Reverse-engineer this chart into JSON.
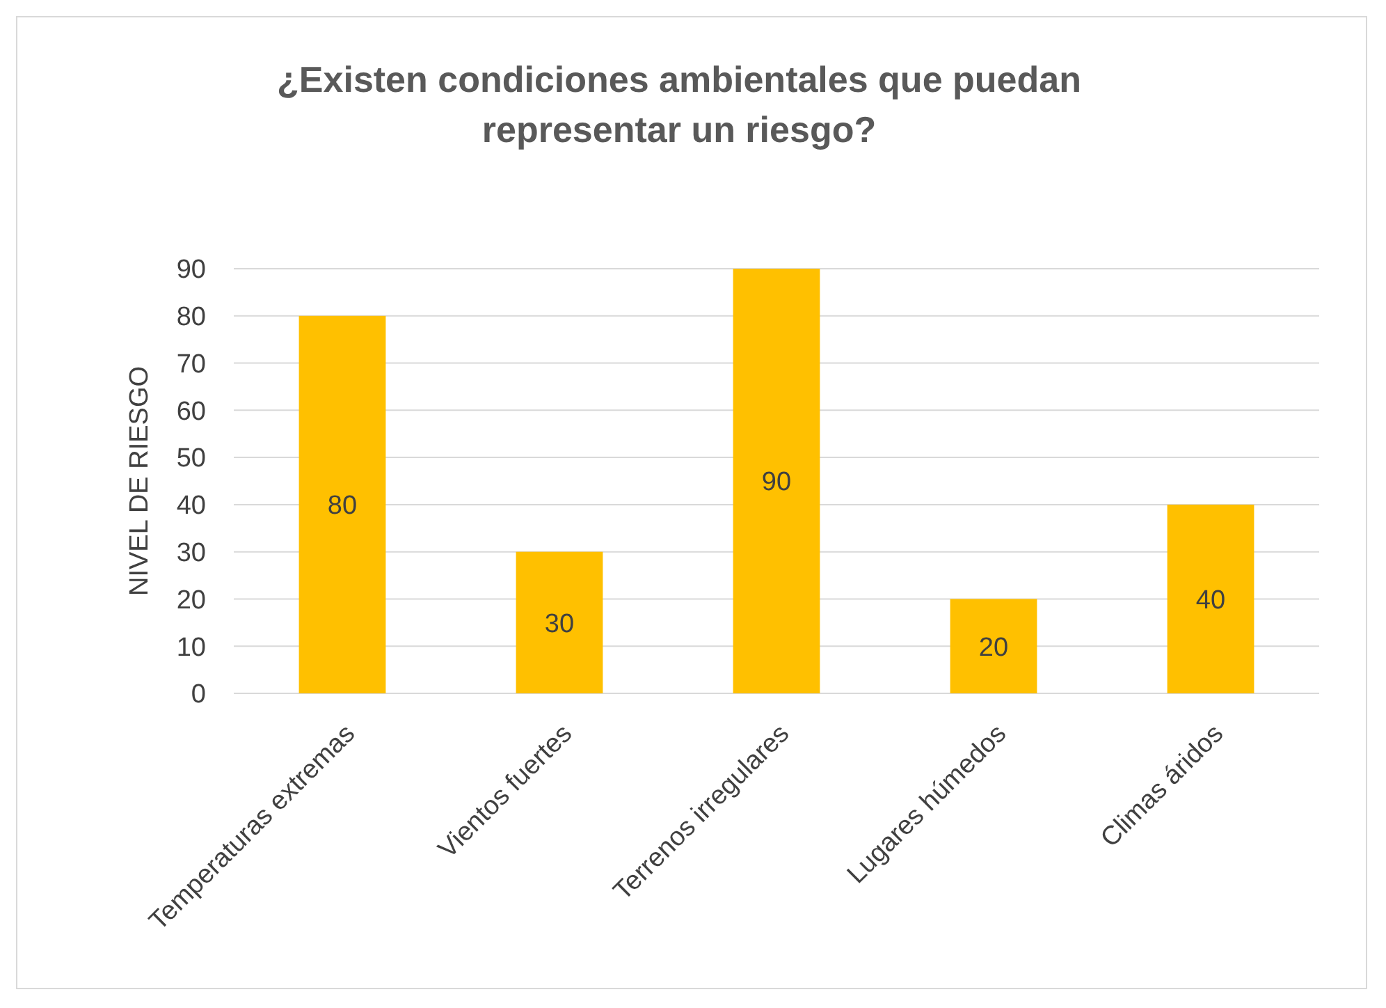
{
  "chart_data": {
    "type": "bar",
    "title": "¿Existen condiciones ambientales que puedan representar un riesgo?",
    "ylabel": "NIVEL DE RIESGO",
    "categories": [
      "Temperaturas extremas",
      "Vientos fuertes",
      "Terrenos irregulares",
      "Lugares húmedos",
      "Climas áridos"
    ],
    "values": [
      80,
      30,
      90,
      20,
      40
    ],
    "color": "#ffc000",
    "ylim": [
      0,
      90
    ],
    "yticks": [
      0,
      10,
      20,
      30,
      40,
      50,
      60,
      70,
      80,
      90
    ],
    "grid": "y",
    "data_labels": true
  }
}
